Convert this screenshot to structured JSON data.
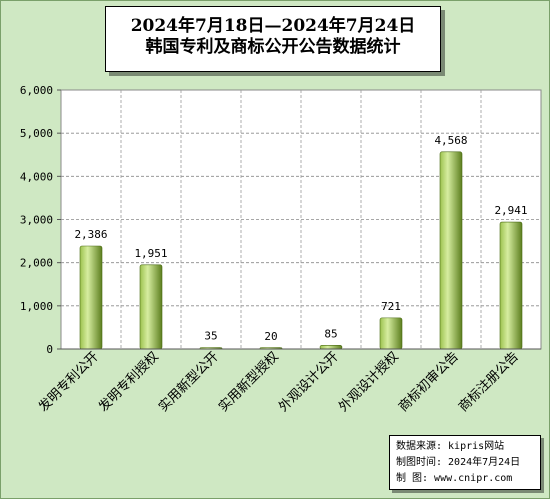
{
  "title": {
    "line1": "2024年7月18日—2024年7月24日",
    "line2": "韩国专利及商标公开公告数据统计"
  },
  "source": {
    "row1": "数据来源: kipris网站",
    "row2": "制图时间: 2024年7月24日",
    "row3": "制 图: www.cnipr.com"
  },
  "colors": {
    "bar_light": "#d6eda0",
    "bar_mid": "#9cc24e",
    "bar_dark": "#5c7e1e",
    "plot_bg": "#ffffff",
    "page_bg": "#cfe8c3"
  },
  "chart_data": {
    "type": "bar",
    "title": "2024年7月18日—2024年7月24日 韩国专利及商标公开公告数据统计",
    "categories": [
      "发明专利公开",
      "发明专利授权",
      "实用新型公开",
      "实用新型授权",
      "外观设计公开",
      "外观设计授权",
      "商标初审公告",
      "商标注册公告"
    ],
    "values": [
      2386,
      1951,
      35,
      20,
      85,
      721,
      4568,
      2941
    ],
    "value_labels": [
      "2,386",
      "1,951",
      "35",
      "20",
      "85",
      "721",
      "4,568",
      "2,941"
    ],
    "y_ticks": [
      "0",
      "1,000",
      "2,000",
      "3,000",
      "4,000",
      "5,000",
      "6,000"
    ],
    "ylim": [
      0,
      6000
    ],
    "xlabel": "",
    "ylabel": "",
    "grid": true,
    "legend": "none"
  }
}
